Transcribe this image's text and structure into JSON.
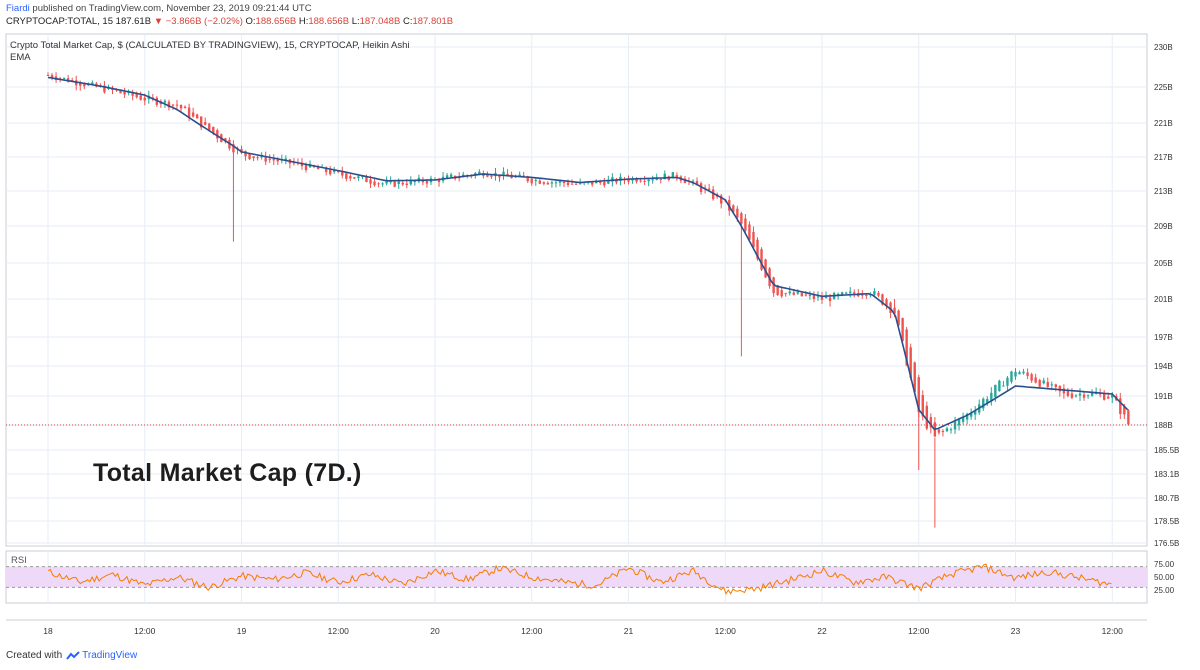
{
  "header": {
    "author": "Fiardi",
    "published_text": "published on TradingView.com, November 23, 2019 09:21:44 UTC",
    "symbol": "CRYPTOCAP:TOTAL, 15",
    "last": "187.61B",
    "change": "▼ −3.866B (−2.02%)",
    "o_label": "O:",
    "o_value": "188.656B",
    "h_label": "H:",
    "h_value": "188.656B",
    "l_label": "L:",
    "l_value": "187.048B",
    "c_label": "C:",
    "c_value": "187.801B"
  },
  "legend": {
    "title": "Crypto Total Market Cap, $ (CALCULATED BY TRADINGVIEW), 15, CRYPTOCAP, Heikin Ashi",
    "ema": "EMA"
  },
  "overlay_title": "Total Market Cap (7D.)",
  "rsi_label": "RSI",
  "footer": {
    "created_with": "Created with",
    "brand": "TradingView"
  },
  "colors": {
    "up": "#26a69a",
    "down": "#ef5350",
    "ema": "#2a4f8c",
    "rsi": "#f57c00",
    "rsi_band": "#efd9f9",
    "grid": "#e6eef6",
    "price_line": "#e53935"
  },
  "chart_data": {
    "type": "line",
    "title": "Crypto Total Market Cap, $ (CALCULATED BY TRADINGVIEW), 15, CRYPTOCAP, Heikin Ashi",
    "x_ticks": [
      "18",
      "12:00",
      "19",
      "12:00",
      "20",
      "12:00",
      "21",
      "12:00",
      "22",
      "12:00",
      "23",
      "12:00"
    ],
    "x_range": [
      "18",
      "23 14:00"
    ],
    "y_ticks": [
      "230B",
      "225B",
      "221B",
      "217B",
      "213B",
      "209B",
      "205B",
      "201B",
      "197B",
      "194B",
      "191B",
      "188B",
      "185.5B",
      "183.1B",
      "180.7B",
      "178.5B",
      "176.5B"
    ],
    "ylim": [
      176.5,
      230
    ],
    "grid": true,
    "current_price_label": "188B",
    "series": [
      {
        "name": "",
        "style": "heikin-ashi",
        "x": [
          "18 00:00",
          "18 06:00",
          "18 12:00",
          "18 16:00",
          "18 23:00",
          "19 00:00",
          "19 06:00",
          "19 12:00",
          "19 18:00",
          "20 00:00",
          "20 06:00",
          "20 12:00",
          "20 18:00",
          "21 00:00",
          "21 06:00",
          "21 08:00",
          "21 12:00",
          "21 14:00",
          "21 18:00",
          "22 00:00",
          "22 06:00",
          "22 09:00",
          "22 12:00",
          "22 14:00",
          "22 18:00",
          "23 00:00",
          "23 06:00",
          "23 09:00",
          "23 12:00",
          "23 14:00"
        ],
        "y": [
          226.5,
          225.0,
          223.7,
          223.0,
          218.0,
          217.3,
          216.3,
          215.0,
          213.8,
          214.3,
          215.2,
          214.3,
          213.8,
          214.4,
          214.8,
          213.8,
          211.5,
          209.2,
          201.8,
          201.0,
          201.9,
          199.6,
          189.3,
          186.7,
          189.1,
          193.6,
          191.1,
          191.3,
          190.9,
          188.1
        ]
      },
      {
        "name": "EMA",
        "style": "line",
        "x": [
          "18 00:00",
          "18 06:00",
          "18 12:00",
          "18 16:00",
          "18 23:00",
          "19 00:00",
          "19 06:00",
          "19 12:00",
          "19 18:00",
          "20 00:00",
          "20 06:00",
          "20 12:00",
          "20 18:00",
          "21 00:00",
          "21 06:00",
          "21 08:00",
          "21 12:00",
          "21 14:00",
          "21 18:00",
          "22 00:00",
          "22 06:00",
          "22 09:00",
          "22 12:00",
          "22 14:00",
          "22 18:00",
          "23 00:00",
          "23 06:00",
          "23 09:00",
          "23 12:00",
          "23 14:00"
        ],
        "y": [
          226.2,
          225.2,
          224.1,
          222.5,
          218.3,
          217.6,
          216.5,
          215.4,
          214.2,
          214.3,
          215.0,
          214.6,
          214.0,
          214.4,
          214.6,
          214.0,
          212.0,
          209.0,
          202.5,
          201.3,
          201.6,
          199.6,
          189.6,
          187.5,
          189.0,
          192.0,
          191.6,
          191.4,
          191.2,
          189.5
        ]
      },
      {
        "name": "RSI",
        "style": "line",
        "panel": "rsi",
        "ylim": [
          0,
          100
        ],
        "y_ticks": [
          "75.00",
          "50.00",
          "25.00"
        ],
        "band": [
          30,
          70
        ],
        "x": [
          "18 00:00",
          "18 04:00",
          "18 08:00",
          "18 12:00",
          "18 16:00",
          "18 20:00",
          "19 00:00",
          "19 04:00",
          "19 08:00",
          "19 12:00",
          "19 16:00",
          "19 20:00",
          "20 00:00",
          "20 04:00",
          "20 08:00",
          "20 12:00",
          "20 16:00",
          "20 20:00",
          "21 00:00",
          "21 04:00",
          "21 08:00",
          "21 12:00",
          "21 16:00",
          "21 20:00",
          "22 00:00",
          "22 04:00",
          "22 08:00",
          "22 12:00",
          "22 16:00",
          "22 20:00",
          "23 00:00",
          "23 04:00",
          "23 08:00",
          "23 12:00"
        ],
        "y": [
          60,
          40,
          55,
          34,
          50,
          30,
          52,
          45,
          58,
          40,
          55,
          36,
          62,
          45,
          67,
          50,
          40,
          34,
          67,
          40,
          62,
          22,
          28,
          44,
          62,
          40,
          50,
          28,
          55,
          70,
          48,
          60,
          48,
          35
        ]
      }
    ]
  }
}
